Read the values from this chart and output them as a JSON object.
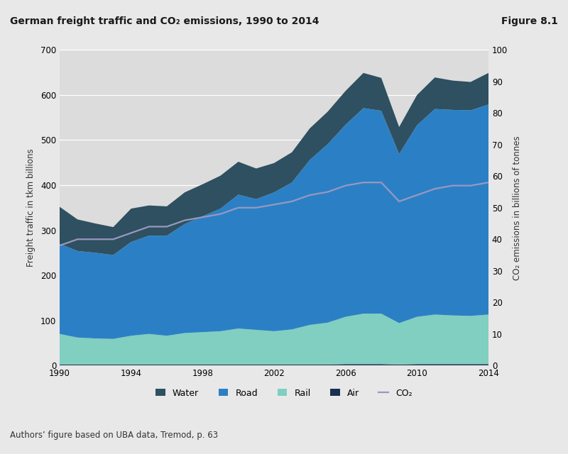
{
  "title": "German freight traffic and CO₂ emissions, 1990 to 2014",
  "figure_label": "Figure 8.1",
  "source_text": "Authors’ figure based on UBA data, Tremod, p. 63",
  "ylabel_left": "Freight traffic in tkm billions",
  "ylabel_right": "CO₂ emissions in billions of tonnes",
  "ylim_left": [
    0,
    700
  ],
  "ylim_right": [
    0,
    100
  ],
  "yticks_left": [
    0,
    100,
    200,
    300,
    400,
    500,
    600,
    700
  ],
  "yticks_right": [
    0,
    10,
    20,
    30,
    40,
    50,
    60,
    70,
    80,
    90,
    100
  ],
  "xticks": [
    1990,
    1994,
    1998,
    2002,
    2006,
    2010,
    2014
  ],
  "years": [
    1990,
    1991,
    1992,
    1993,
    1994,
    1995,
    1996,
    1997,
    1998,
    1999,
    2000,
    2001,
    2002,
    2003,
    2004,
    2005,
    2006,
    2007,
    2008,
    2009,
    2010,
    2011,
    2012,
    2013,
    2014
  ],
  "air": [
    2,
    2,
    2,
    2,
    2,
    2,
    2,
    2,
    2,
    2,
    2,
    2,
    2,
    2,
    2,
    2,
    3,
    3,
    3,
    2,
    3,
    3,
    3,
    3,
    3
  ],
  "rail": [
    68,
    60,
    58,
    57,
    64,
    68,
    64,
    70,
    72,
    74,
    80,
    77,
    74,
    78,
    88,
    93,
    105,
    112,
    112,
    92,
    105,
    110,
    108,
    107,
    110
  ],
  "road": [
    200,
    192,
    190,
    186,
    208,
    218,
    222,
    242,
    257,
    272,
    297,
    290,
    308,
    326,
    366,
    396,
    426,
    456,
    450,
    375,
    425,
    456,
    456,
    456,
    466
  ],
  "water": [
    82,
    70,
    65,
    62,
    74,
    67,
    65,
    70,
    71,
    73,
    73,
    68,
    65,
    67,
    70,
    72,
    75,
    78,
    73,
    60,
    67,
    70,
    65,
    63,
    70
  ],
  "co2": [
    38,
    40,
    40,
    40,
    42,
    44,
    44,
    46,
    47,
    48,
    50,
    50,
    51,
    52,
    54,
    55,
    57,
    58,
    58,
    52,
    54,
    56,
    57,
    57,
    58
  ],
  "colors": {
    "water": "#2e5060",
    "road": "#2b80c5",
    "rail": "#80cfc0",
    "air": "#1a3050",
    "co2": "#9898c0"
  },
  "fig_bg": "#e8e8e8",
  "title_bg": "#d8d8d8",
  "plot_bg": "#dcdcdc",
  "grid_color": "#ffffff"
}
